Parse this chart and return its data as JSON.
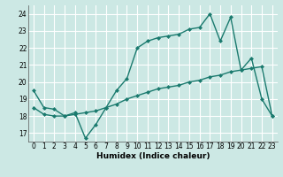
{
  "xlabel": "Humidex (Indice chaleur)",
  "bg_color": "#cce8e4",
  "grid_color": "#ffffff",
  "line_color": "#1a7a6e",
  "x_ticks": [
    0,
    1,
    2,
    3,
    4,
    5,
    6,
    7,
    8,
    9,
    10,
    11,
    12,
    13,
    14,
    15,
    16,
    17,
    18,
    19,
    20,
    21,
    22,
    23
  ],
  "y_ticks": [
    17,
    18,
    19,
    20,
    21,
    22,
    23,
    24
  ],
  "ylim": [
    16.5,
    24.5
  ],
  "xlim": [
    -0.5,
    23.5
  ],
  "line1_x": [
    0,
    1,
    2,
    3,
    4,
    5,
    6,
    7,
    8,
    9,
    10,
    11,
    12,
    13,
    14,
    15,
    16,
    17,
    18,
    19,
    20,
    21,
    22,
    23
  ],
  "line1_y": [
    19.5,
    18.5,
    18.4,
    18.0,
    18.2,
    16.7,
    17.5,
    18.5,
    19.5,
    20.2,
    22.0,
    22.4,
    22.6,
    22.7,
    22.8,
    23.1,
    23.2,
    24.0,
    22.4,
    23.8,
    20.7,
    21.4,
    19.0,
    18.0
  ],
  "line2_x": [
    0,
    1,
    2,
    3,
    4,
    5,
    6,
    7,
    8,
    9,
    10,
    11,
    12,
    13,
    14,
    15,
    16,
    17,
    18,
    19,
    20,
    21,
    22,
    23
  ],
  "line2_y": [
    18.5,
    18.1,
    18.0,
    18.0,
    18.1,
    18.2,
    18.3,
    18.5,
    18.7,
    19.0,
    19.2,
    19.4,
    19.6,
    19.7,
    19.8,
    20.0,
    20.1,
    20.3,
    20.4,
    20.6,
    20.7,
    20.8,
    20.9,
    18.0
  ],
  "marker": "D",
  "marker_size": 2,
  "linewidth": 1.0,
  "tick_fontsize": 5.5,
  "xlabel_fontsize": 6.5
}
